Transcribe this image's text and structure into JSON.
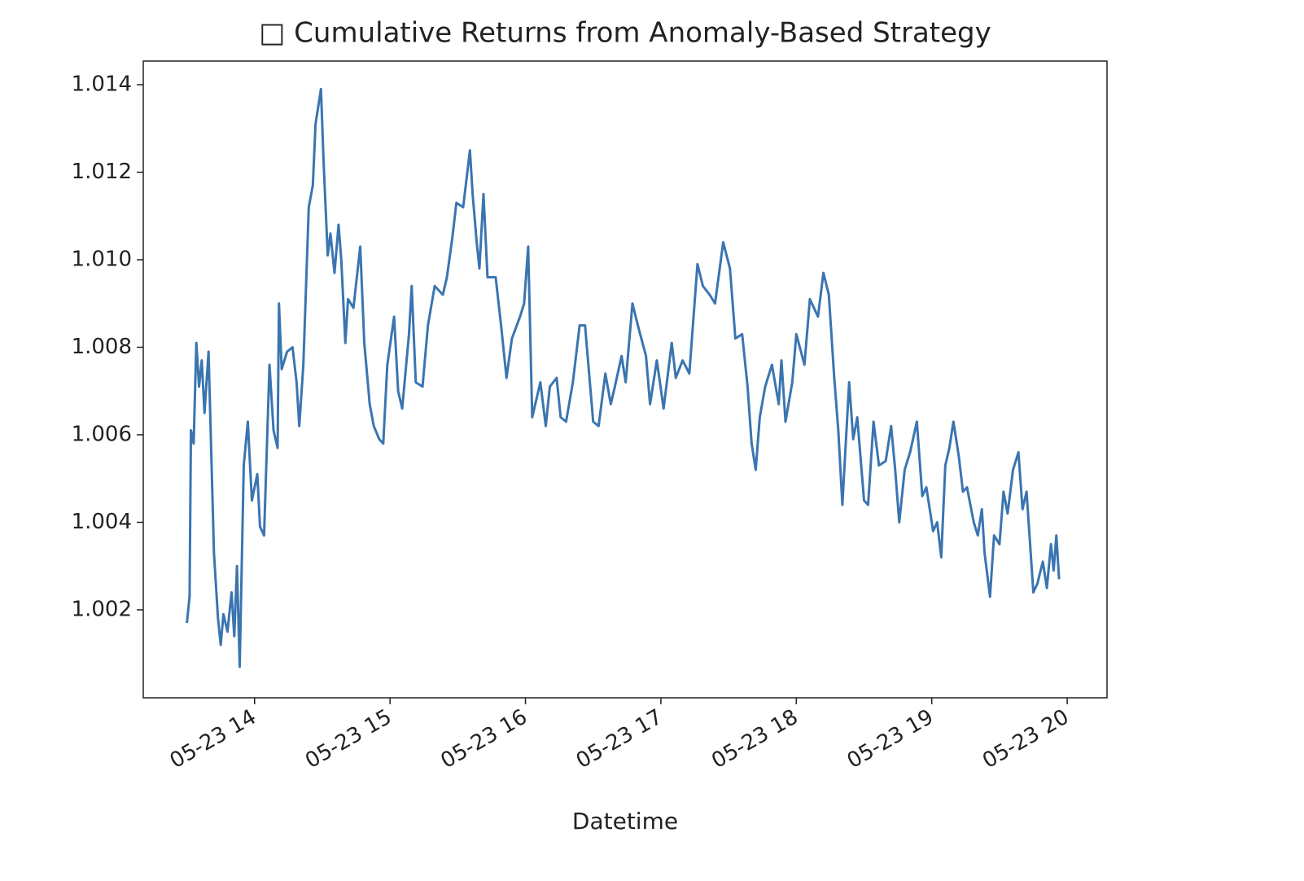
{
  "chart_data": {
    "type": "line",
    "title": "□ Cumulative Returns from Anomaly-Based Strategy",
    "x_label": "Datetime",
    "xlim": [
      13.178,
      20.294
    ],
    "ylim": [
      0.99999,
      1.01454
    ],
    "xticks": [
      {
        "value": 14,
        "label": "05-23 14"
      },
      {
        "value": 15,
        "label": "05-23 15"
      },
      {
        "value": 16,
        "label": "05-23 16"
      },
      {
        "value": 17,
        "label": "05-23 17"
      },
      {
        "value": 18,
        "label": "05-23 18"
      },
      {
        "value": 19,
        "label": "05-23 19"
      },
      {
        "value": 20,
        "label": "05-23 20"
      }
    ],
    "yticks": [
      {
        "value": 1.002,
        "label": "1.002"
      },
      {
        "value": 1.004,
        "label": "1.004"
      },
      {
        "value": 1.006,
        "label": "1.006"
      },
      {
        "value": 1.008,
        "label": "1.008"
      },
      {
        "value": 1.01,
        "label": "1.010"
      },
      {
        "value": 1.012,
        "label": "1.012"
      },
      {
        "value": 1.014,
        "label": "1.014"
      }
    ],
    "x": [
      13.5,
      13.52,
      13.53,
      13.55,
      13.57,
      13.59,
      13.61,
      13.63,
      13.66,
      13.7,
      13.73,
      13.75,
      13.77,
      13.8,
      13.83,
      13.85,
      13.87,
      13.89,
      13.92,
      13.95,
      13.98,
      14.02,
      14.04,
      14.07,
      14.11,
      14.14,
      14.17,
      14.18,
      14.2,
      14.24,
      14.28,
      14.31,
      14.33,
      14.36,
      14.4,
      14.43,
      14.45,
      14.49,
      14.51,
      14.54,
      14.56,
      14.59,
      14.62,
      14.64,
      14.67,
      14.69,
      14.73,
      14.78,
      14.81,
      14.85,
      14.88,
      14.92,
      14.95,
      14.98,
      15.03,
      15.06,
      15.09,
      15.14,
      15.16,
      15.19,
      15.24,
      15.28,
      15.33,
      15.39,
      15.42,
      15.46,
      15.49,
      15.54,
      15.59,
      15.61,
      15.64,
      15.66,
      15.69,
      15.72,
      15.78,
      15.82,
      15.86,
      15.9,
      15.96,
      15.99,
      16.02,
      16.05,
      16.11,
      16.15,
      16.18,
      16.23,
      16.26,
      16.3,
      16.35,
      16.4,
      16.44,
      16.5,
      16.54,
      16.59,
      16.63,
      16.66,
      16.71,
      16.74,
      16.79,
      16.83,
      16.89,
      16.92,
      16.97,
      17.02,
      17.08,
      17.11,
      17.16,
      17.21,
      17.27,
      17.31,
      17.36,
      17.4,
      17.46,
      17.51,
      17.55,
      17.6,
      17.64,
      17.67,
      17.7,
      17.73,
      17.77,
      17.82,
      17.87,
      17.89,
      17.92,
      17.97,
      18.0,
      18.06,
      18.1,
      18.16,
      18.2,
      18.24,
      18.28,
      18.31,
      18.34,
      18.39,
      18.42,
      18.45,
      18.5,
      18.53,
      18.57,
      18.61,
      18.66,
      18.7,
      18.73,
      18.76,
      18.8,
      18.84,
      18.89,
      18.93,
      18.96,
      19.01,
      19.04,
      19.07,
      19.1,
      19.13,
      19.16,
      19.2,
      19.23,
      19.26,
      19.31,
      19.34,
      19.37,
      19.39,
      19.43,
      19.46,
      19.5,
      19.53,
      19.56,
      19.6,
      19.64,
      19.67,
      19.7,
      19.75,
      19.78,
      19.82,
      19.85,
      19.88,
      19.9,
      19.92,
      19.94
    ],
    "series": [
      {
        "color": "#3a75b0",
        "values": [
          1.0017,
          1.0023,
          1.0061,
          1.0058,
          1.0081,
          1.0071,
          1.0077,
          1.0065,
          1.0079,
          1.0033,
          1.0018,
          1.0012,
          1.0019,
          1.0015,
          1.0024,
          1.0014,
          1.003,
          1.0007,
          1.0053,
          1.0063,
          1.0045,
          1.0051,
          1.0039,
          1.0037,
          1.0076,
          1.0061,
          1.0057,
          1.009,
          1.0075,
          1.0079,
          1.008,
          1.0072,
          1.0062,
          1.0076,
          1.0112,
          1.0117,
          1.0131,
          1.0139,
          1.0122,
          1.0101,
          1.0106,
          1.0097,
          1.0108,
          1.01,
          1.0081,
          1.0091,
          1.0089,
          1.0103,
          1.0081,
          1.0067,
          1.0062,
          1.0059,
          1.0058,
          1.0076,
          1.0087,
          1.007,
          1.0066,
          1.0083,
          1.0094,
          1.0072,
          1.0071,
          1.0085,
          1.0094,
          1.0092,
          1.0096,
          1.0105,
          1.0113,
          1.0112,
          1.0125,
          1.0115,
          1.0104,
          1.0098,
          1.0115,
          1.0096,
          1.0096,
          1.0085,
          1.0073,
          1.0082,
          1.0087,
          1.009,
          1.0103,
          1.0064,
          1.0072,
          1.0062,
          1.0071,
          1.0073,
          1.0064,
          1.0063,
          1.0072,
          1.0085,
          1.0085,
          1.0063,
          1.0062,
          1.0074,
          1.0067,
          1.0071,
          1.0078,
          1.0072,
          1.009,
          1.0085,
          1.0078,
          1.0067,
          1.0077,
          1.0066,
          1.0081,
          1.0073,
          1.0077,
          1.0074,
          1.0099,
          1.0094,
          1.0092,
          1.009,
          1.0104,
          1.0098,
          1.0082,
          1.0083,
          1.0071,
          1.0058,
          1.0052,
          1.0064,
          1.0071,
          1.0076,
          1.0067,
          1.0077,
          1.0063,
          1.0072,
          1.0083,
          1.0076,
          1.0091,
          1.0087,
          1.0097,
          1.0092,
          1.0073,
          1.0061,
          1.0044,
          1.0072,
          1.0059,
          1.0064,
          1.0045,
          1.0044,
          1.0063,
          1.0053,
          1.0054,
          1.0062,
          1.0052,
          1.004,
          1.0052,
          1.0056,
          1.0063,
          1.0046,
          1.0048,
          1.0038,
          1.004,
          1.0032,
          1.0053,
          1.0057,
          1.0063,
          1.0055,
          1.0047,
          1.0048,
          1.004,
          1.0037,
          1.0043,
          1.0033,
          1.0023,
          1.0037,
          1.0035,
          1.0047,
          1.0042,
          1.0052,
          1.0056,
          1.0043,
          1.0047,
          1.0024,
          1.0026,
          1.0031,
          1.0025,
          1.0035,
          1.0029,
          1.0037,
          1.0027
        ]
      }
    ]
  }
}
